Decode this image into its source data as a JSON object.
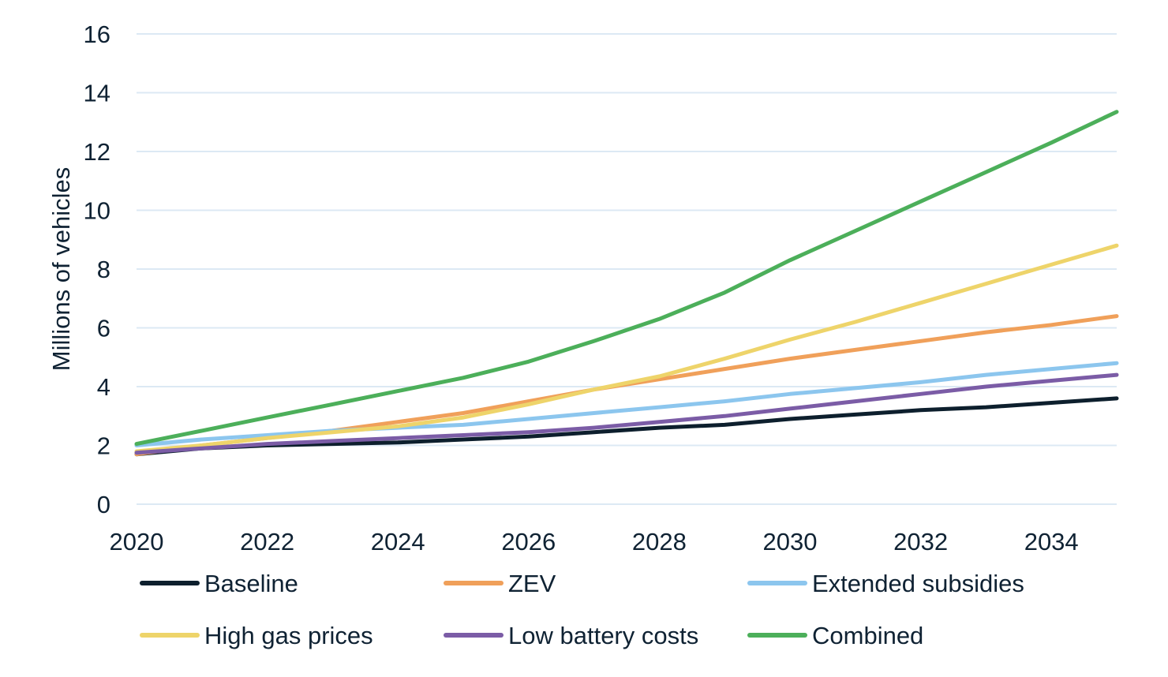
{
  "chart_data": {
    "type": "line",
    "title": "",
    "xlabel": "",
    "ylabel": "Millions of vehicles",
    "x": [
      2020,
      2021,
      2022,
      2023,
      2024,
      2025,
      2026,
      2027,
      2028,
      2029,
      2030,
      2031,
      2032,
      2033,
      2034,
      2035
    ],
    "xticks": [
      2020,
      2022,
      2024,
      2026,
      2028,
      2030,
      2032,
      2034
    ],
    "yticks": [
      0,
      2,
      4,
      6,
      8,
      10,
      12,
      14,
      16
    ],
    "xlim": [
      2020,
      2035
    ],
    "ylim": [
      0,
      16
    ],
    "grid": "horizontal",
    "legend_position": "bottom",
    "series": [
      {
        "name": "Baseline",
        "color": "#0d1f2d",
        "values": [
          1.7,
          1.9,
          2.0,
          2.05,
          2.1,
          2.2,
          2.3,
          2.45,
          2.6,
          2.7,
          2.9,
          3.05,
          3.2,
          3.3,
          3.45,
          3.6
        ]
      },
      {
        "name": "ZEV",
        "color": "#f0a05a",
        "values": [
          1.7,
          2.0,
          2.25,
          2.5,
          2.8,
          3.1,
          3.5,
          3.9,
          4.25,
          4.6,
          4.95,
          5.25,
          5.55,
          5.85,
          6.1,
          6.4
        ]
      },
      {
        "name": "Extended subsidies",
        "color": "#8cc6ee",
        "values": [
          2.0,
          2.2,
          2.35,
          2.5,
          2.6,
          2.7,
          2.9,
          3.1,
          3.3,
          3.5,
          3.75,
          3.95,
          4.15,
          4.4,
          4.6,
          4.8
        ]
      },
      {
        "name": "High gas prices",
        "color": "#eed46a",
        "values": [
          1.8,
          2.0,
          2.25,
          2.45,
          2.65,
          2.95,
          3.4,
          3.9,
          4.35,
          4.95,
          5.6,
          6.2,
          6.85,
          7.5,
          8.15,
          8.8
        ]
      },
      {
        "name": "Low battery costs",
        "color": "#7b5ca6",
        "values": [
          1.75,
          1.9,
          2.05,
          2.15,
          2.25,
          2.35,
          2.45,
          2.6,
          2.8,
          3.0,
          3.25,
          3.5,
          3.75,
          4.0,
          4.2,
          4.4
        ]
      },
      {
        "name": "Combined",
        "color": "#4caf5a",
        "values": [
          2.05,
          2.5,
          2.95,
          3.4,
          3.85,
          4.3,
          4.85,
          5.55,
          6.3,
          7.2,
          8.3,
          9.3,
          10.3,
          11.3,
          12.3,
          13.35
        ]
      }
    ]
  }
}
